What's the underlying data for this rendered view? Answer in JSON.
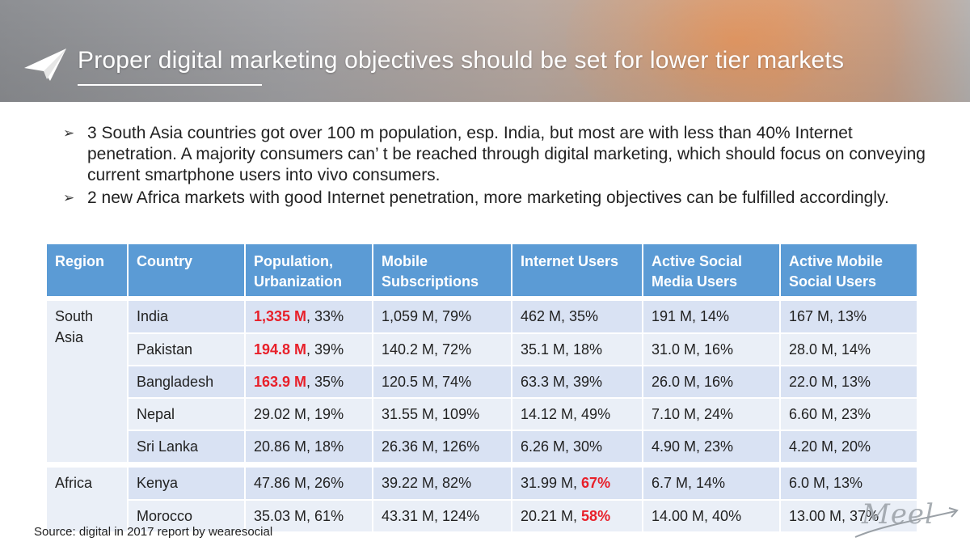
{
  "slide": {
    "title": "Proper digital marketing objectives should be set for lower tier markets",
    "bullets": [
      "3 South Asia countries got over 100 m population, esp. India, but most are with less than 40% Internet penetration. A majority consumers can’ t be reached through digital marketing, which should focus on conveying current smartphone users into vivo consumers.",
      "2 new Africa markets with good Internet penetration, more marketing objectives can be fulfilled accordingly."
    ],
    "bullet_marker": "➢",
    "source": "Source: digital in 2017 report by wearesocial",
    "logo_text": "Meel"
  },
  "colors": {
    "header_blue": "#5b9bd5",
    "band_dark": "#d9e2f3",
    "band_light": "#eaeff7",
    "highlight_red": "#e8202a"
  },
  "table": {
    "headers": [
      "Region",
      "Country",
      "Population, Urbanization",
      "Mobile Subscriptions",
      "Internet Users",
      "Active Social Media Users",
      "Active Mobile Social Users"
    ],
    "regions": {
      "south_asia": "South Asia",
      "africa": "Africa"
    },
    "rows": [
      {
        "country": "India",
        "pop": "1,335 M",
        "urb": ", 33%",
        "mobile": "1,059 M, 79%",
        "internet_val": "462 M, 35%",
        "internet_pct": "",
        "social": "191 M, 14%",
        "mobile_social": "167 M, 13%"
      },
      {
        "country": "Pakistan",
        "pop": "194.8 M",
        "urb": ", 39%",
        "mobile": "140.2 M, 72%",
        "internet_val": "35.1 M, 18%",
        "internet_pct": "",
        "social": "31.0 M, 16%",
        "mobile_social": "28.0 M, 14%"
      },
      {
        "country": "Bangladesh",
        "pop": "163.9 M",
        "urb": ", 35%",
        "mobile": "120.5 M, 74%",
        "internet_val": "63.3 M, 39%",
        "internet_pct": "",
        "social": "26.0 M, 16%",
        "mobile_social": "22.0 M, 13%"
      },
      {
        "country": "Nepal",
        "pop": "29.02 M, 19%",
        "urb": "",
        "mobile": "31.55 M, 109%",
        "internet_val": "14.12 M, 49%",
        "internet_pct": "",
        "social": "7.10 M, 24%",
        "mobile_social": "6.60 M, 23%"
      },
      {
        "country": "Sri Lanka",
        "pop": "20.86 M, 18%",
        "urb": "",
        "mobile": "26.36 M, 126%",
        "internet_val": "6.26 M,  30%",
        "internet_pct": "",
        "social": "4.90 M, 23%",
        "mobile_social": "4.20 M, 20%"
      },
      {
        "country": "Kenya",
        "pop": "47.86 M, 26%",
        "urb": "",
        "mobile": "39.22 M, 82%",
        "internet_val": "31.99 M, ",
        "internet_pct": "67%",
        "social": "6.7 M, 14%",
        "mobile_social": "6.0 M, 13%"
      },
      {
        "country": "Morocco",
        "pop": "35.03 M, 61%",
        "urb": "",
        "mobile": "43.31 M, 124%",
        "internet_val": "20.21 M, ",
        "internet_pct": "58%",
        "social": "14.00 M, 40%",
        "mobile_social": "13.00 M, 37%"
      }
    ]
  }
}
